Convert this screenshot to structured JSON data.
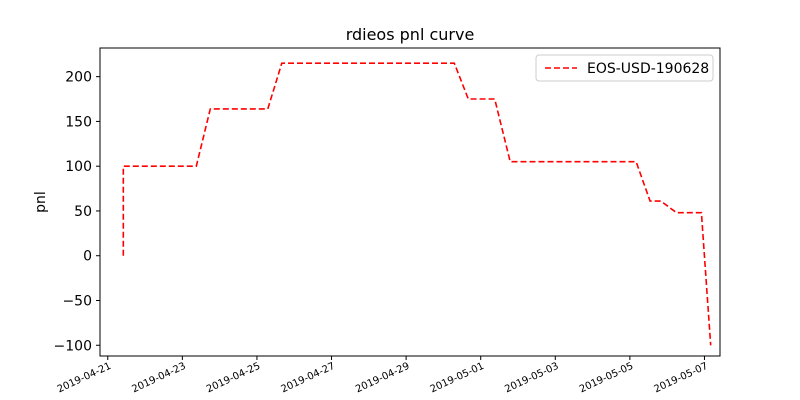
{
  "chart_data": {
    "type": "line",
    "title": "rdieos pnl curve",
    "xlabel": "",
    "ylabel": "pnl",
    "xlim": [
      "2019-04-20T19:00",
      "2019-05-07T10:00"
    ],
    "ylim": [
      -112,
      232
    ],
    "x_ticks": [
      "2019-04-21",
      "2019-04-23",
      "2019-04-25",
      "2019-04-27",
      "2019-04-29",
      "2019-05-01",
      "2019-05-03",
      "2019-05-05",
      "2019-05-07"
    ],
    "y_ticks": [
      200,
      150,
      100,
      50,
      0,
      -50,
      -100
    ],
    "y_tick_labels": [
      "200",
      "150",
      "100",
      "50",
      "0",
      "−50",
      "−100"
    ],
    "grid": false,
    "legend_position": "top-right",
    "series": [
      {
        "name": "EOS-USD-190628",
        "color": "#ff0000",
        "line_style": "dashed",
        "x": [
          "2019-04-21T10:00",
          "2019-04-21T10:00",
          "2019-04-23T09:00",
          "2019-04-23T18:00",
          "2019-04-25T07:00",
          "2019-04-25T16:00",
          "2019-04-30T07:00",
          "2019-04-30T16:00",
          "2019-05-01T09:00",
          "2019-05-01T19:00",
          "2019-05-05T04:00",
          "2019-05-05T13:00",
          "2019-05-05T20:00",
          "2019-05-06T06:00",
          "2019-05-06T22:00",
          "2019-05-07T04:00"
        ],
        "y": [
          0,
          100,
          100,
          164,
          164,
          215,
          215,
          175,
          175,
          105,
          105,
          61,
          61,
          48,
          48,
          -100
        ]
      }
    ]
  }
}
